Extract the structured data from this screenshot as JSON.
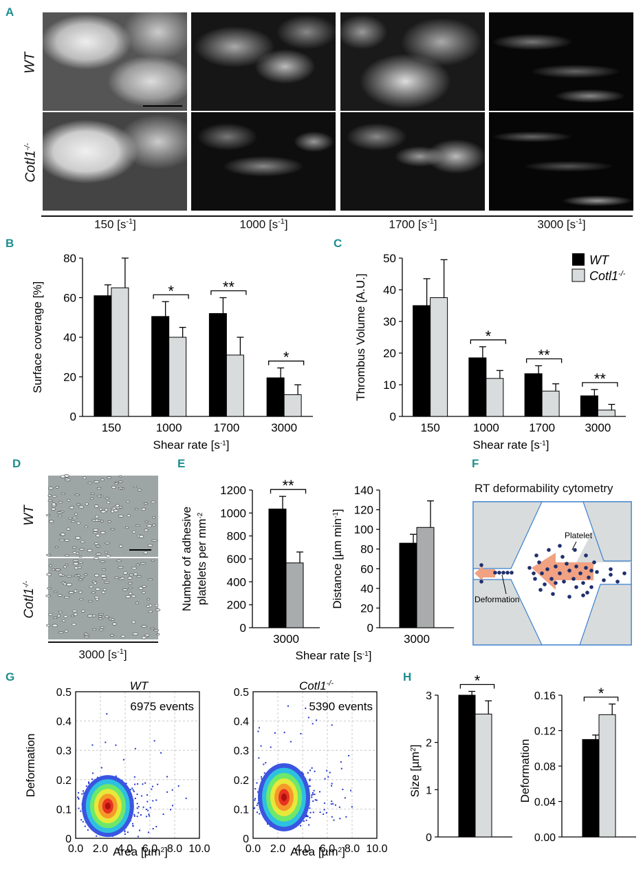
{
  "panel_labels": {
    "a": "A",
    "b": "B",
    "c": "C",
    "d": "D",
    "e": "E",
    "f": "F",
    "g": "G",
    "h": "H"
  },
  "panel_a": {
    "row_labels": [
      "WT",
      "Cotl1"
    ],
    "row_label_sup": "-/-",
    "shear_labels": [
      "150 [s",
      "1000 [s",
      "1700 [s",
      "3000 [s"
    ],
    "shear_sup": "-1",
    "shear_close": "]"
  },
  "legend": {
    "wt": "WT",
    "ko": "Cotl1",
    "ko_sup": "-/-"
  },
  "colors": {
    "wt": "#000000",
    "ko": "#d8dcdc",
    "ko_dark": "#a8acac",
    "accent": "#1e8e8e",
    "channel": "#3a7fd0"
  },
  "chart_data": [
    {
      "id": "B",
      "type": "bar",
      "categories": [
        "150",
        "1000",
        "1700",
        "3000"
      ],
      "series": [
        {
          "name": "WT",
          "values": [
            61,
            50.5,
            52,
            19.5
          ],
          "errors": [
            5.5,
            7.5,
            8,
            5
          ]
        },
        {
          "name": "Cotl1-/-",
          "values": [
            65,
            40,
            31,
            11
          ],
          "errors": [
            15,
            5,
            9,
            5
          ]
        }
      ],
      "significance": [
        "",
        "*",
        "**",
        "*"
      ],
      "ylabel": "Surface coverage [%]",
      "xlabel": "Shear rate [s",
      "xlabel_sup": "-1",
      "xlabel_end": "]",
      "ylim": [
        0,
        80
      ],
      "yticks": [
        0,
        20,
        40,
        60,
        80
      ]
    },
    {
      "id": "C",
      "type": "bar",
      "categories": [
        "150",
        "1000",
        "1700",
        "3000"
      ],
      "series": [
        {
          "name": "WT",
          "values": [
            35,
            18.5,
            13.5,
            6.5
          ],
          "errors": [
            8.5,
            3.5,
            2.5,
            2
          ]
        },
        {
          "name": "Cotl1-/-",
          "values": [
            37.5,
            12,
            8,
            2
          ],
          "errors": [
            12,
            2.5,
            2.3,
            1.8
          ]
        }
      ],
      "significance": [
        "",
        "*",
        "**",
        "**"
      ],
      "ylabel": "Thrombus Volume [A.U.]",
      "xlabel": "Shear rate [s",
      "xlabel_sup": "-1",
      "xlabel_end": "]",
      "ylim": [
        0,
        50
      ],
      "yticks": [
        0,
        10,
        20,
        30,
        40,
        50
      ]
    },
    {
      "id": "E1",
      "type": "bar",
      "categories": [
        "3000"
      ],
      "series": [
        {
          "name": "WT",
          "values": [
            1035
          ],
          "errors": [
            110
          ]
        },
        {
          "name": "Cotl1-/-",
          "values": [
            565
          ],
          "errors": [
            95
          ]
        }
      ],
      "significance": [
        "**"
      ],
      "ylabel1": "Number of adhesive",
      "ylabel2": "platelets per mm",
      "ylabel_sup": "-2",
      "ylim": [
        0,
        1200
      ],
      "yticks": [
        0,
        200,
        400,
        600,
        800,
        1000,
        1200
      ]
    },
    {
      "id": "E2",
      "type": "bar",
      "categories": [
        "3000"
      ],
      "series": [
        {
          "name": "WT",
          "values": [
            86
          ],
          "errors": [
            9
          ]
        },
        {
          "name": "Cotl1-/-",
          "values": [
            102
          ],
          "errors": [
            27
          ]
        }
      ],
      "ylabel": "Distance  [µm min",
      "ylabel_sup": "-1",
      "ylabel_end": "]",
      "ylim": [
        0,
        140
      ],
      "yticks": [
        0,
        20,
        40,
        60,
        80,
        100,
        120,
        140
      ]
    },
    {
      "id": "G1",
      "type": "scatter",
      "title": "WT",
      "annotation": "6975 events",
      "center": [
        2.6,
        0.11
      ],
      "xlabel": "Area [µm",
      "xlabel_sup": "2",
      "xlabel_end": "]",
      "ylabel": "Deformation",
      "xlim": [
        0,
        10
      ],
      "ylim": [
        0,
        0.5
      ],
      "xticks": [
        "0.0",
        "2.0",
        "4.0",
        "6.0",
        "8.0",
        "10.0"
      ],
      "yticks": [
        "0",
        "0.1",
        "0.2",
        "0.3",
        "0.4",
        "0.5"
      ]
    },
    {
      "id": "G2",
      "type": "scatter",
      "title": "Cotl1",
      "title_sup": "-/-",
      "annotation": "5390 events",
      "center": [
        2.5,
        0.14
      ],
      "xlabel": "Area [µm",
      "xlabel_sup": "2",
      "xlabel_end": "]",
      "xlim": [
        0,
        10
      ],
      "ylim": [
        0,
        0.5
      ],
      "xticks": [
        "0.0",
        "2.0",
        "4.0",
        "6.0",
        "8.0",
        "10.0"
      ],
      "yticks": [
        "0",
        "0.1",
        "0.2",
        "0.3",
        "0.4",
        "0.5"
      ]
    },
    {
      "id": "H1",
      "type": "bar",
      "series": [
        {
          "name": "WT",
          "values": [
            3.0
          ],
          "errors": [
            0.08
          ]
        },
        {
          "name": "Cotl1-/-",
          "values": [
            2.6
          ],
          "errors": [
            0.28
          ]
        }
      ],
      "significance": [
        "*"
      ],
      "ylabel": "Size [µm",
      "ylabel_sup": "2",
      "ylabel_end": "]",
      "ylim": [
        0,
        3
      ],
      "yticks": [
        "0",
        "1",
        "2",
        "3"
      ]
    },
    {
      "id": "H2",
      "type": "bar",
      "series": [
        {
          "name": "WT",
          "values": [
            0.11
          ],
          "errors": [
            0.005
          ]
        },
        {
          "name": "Cotl1-/-",
          "values": [
            0.138
          ],
          "errors": [
            0.012
          ]
        }
      ],
      "significance": [
        "*"
      ],
      "ylabel": "Deformation",
      "ylim": [
        0,
        0.16
      ],
      "yticks": [
        "0.00",
        "0.04",
        "0.08",
        "0.12",
        "0.16"
      ]
    }
  ],
  "panel_d": {
    "rows": [
      "WT",
      "Cotl1"
    ],
    "row_sup": "-/-",
    "shear": "3000 [s",
    "shear_sup": "-1",
    "shear_end": "]"
  },
  "panel_e": {
    "xlabel": "Shear rate [s",
    "xlabel_sup": "-1",
    "xlabel_end": "]"
  },
  "panel_f": {
    "title": "RT deformability cytometry",
    "platelet": "Platelet",
    "deformation": "Deformation"
  }
}
